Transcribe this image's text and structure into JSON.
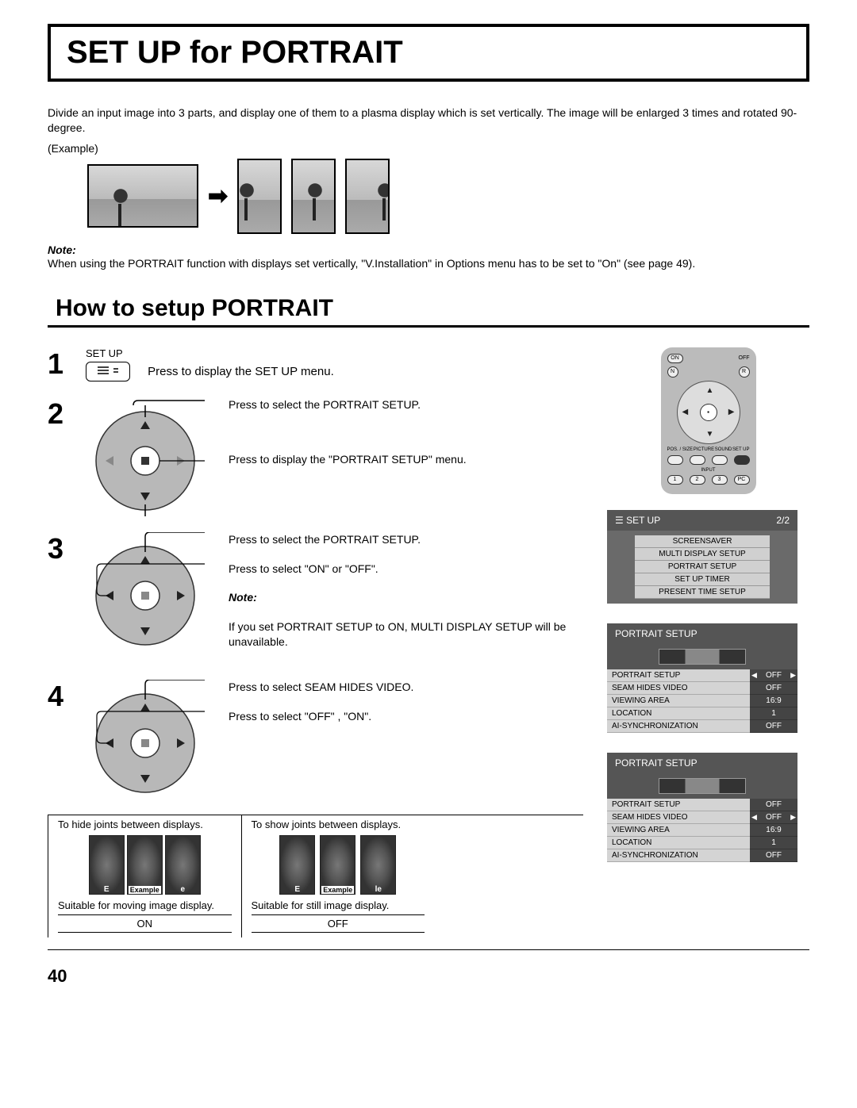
{
  "title": "SET UP for PORTRAIT",
  "intro": "Divide an input image into 3 parts, and display one of them to a plasma display which is set vertically. The image will be enlarged 3 times and rotated 90-degree.",
  "example_label": "(Example)",
  "note_label": "Note:",
  "note_text": "When using the PORTRAIT function with displays set vertically, \"V.Installation\" in Options menu has to be set to \"On\" (see page 49).",
  "section_title": "How to setup PORTRAIT",
  "steps": {
    "s1": {
      "num": "1",
      "btn_caption": "SET UP",
      "line1": "Press to display the SET UP menu."
    },
    "s2": {
      "num": "2",
      "line1": "Press to select the PORTRAIT SETUP.",
      "line2": "Press to display the \"PORTRAIT SETUP\" menu."
    },
    "s3": {
      "num": "3",
      "line1": "Press to select the PORTRAIT SETUP.",
      "line2": "Press to select \"ON\" or \"OFF\".",
      "note_label": "Note:",
      "note_text": "If you set PORTRAIT SETUP to ON, MULTI DISPLAY SETUP will be unavailable."
    },
    "s4": {
      "num": "4",
      "line1": "Press to select SEAM HIDES VIDEO.",
      "line2": "Press to select \"OFF\" , \"ON\"."
    }
  },
  "remote": {
    "on": "ON",
    "off": "OFF",
    "n": "N",
    "r": "R",
    "pos": "POS. / SIZE",
    "pict": "PICTURE",
    "sound": "SOUND",
    "setup": "SET UP",
    "input": "INPUT",
    "b1": "1",
    "b2": "2",
    "b3": "3",
    "pc": "PC"
  },
  "osd_setup": {
    "title": "SET UP",
    "page": "2/2",
    "items": [
      "SCREENSAVER",
      "MULTI DISPLAY SETUP",
      "PORTRAIT SETUP",
      "SET UP TIMER",
      "PRESENT TIME SETUP"
    ]
  },
  "osd_portrait1": {
    "title": "PORTRAIT SETUP",
    "rows": [
      {
        "label": "PORTRAIT SETUP",
        "value": "OFF",
        "arrows": true
      },
      {
        "label": "SEAM HIDES VIDEO",
        "value": "OFF"
      },
      {
        "label": "VIEWING AREA",
        "value": "16:9"
      },
      {
        "label": "LOCATION",
        "value": "1"
      },
      {
        "label": "AI-SYNCHRONIZATION",
        "value": "OFF"
      }
    ]
  },
  "osd_portrait2": {
    "title": "PORTRAIT SETUP",
    "rows": [
      {
        "label": "PORTRAIT SETUP",
        "value": "OFF"
      },
      {
        "label": "SEAM HIDES VIDEO",
        "value": "OFF",
        "arrows": true
      },
      {
        "label": "VIEWING AREA",
        "value": "16:9"
      },
      {
        "label": "LOCATION",
        "value": "1"
      },
      {
        "label": "AI-SYNCHRONIZATION",
        "value": "OFF"
      }
    ]
  },
  "seam": {
    "col1": {
      "top": "To hide joints between displays.",
      "example": "Example",
      "caption": "Suitable for moving image display.",
      "value": "ON"
    },
    "col2": {
      "top": "To show joints between displays.",
      "example": "Example",
      "caption": "Suitable for still image display.",
      "value": "OFF"
    }
  },
  "page_number": "40",
  "colors": {
    "osd_header": "#555555",
    "osd_body": "#6a6a6a",
    "osd_row_light": "#d4d4d4",
    "osd_val_dark": "#444444"
  }
}
